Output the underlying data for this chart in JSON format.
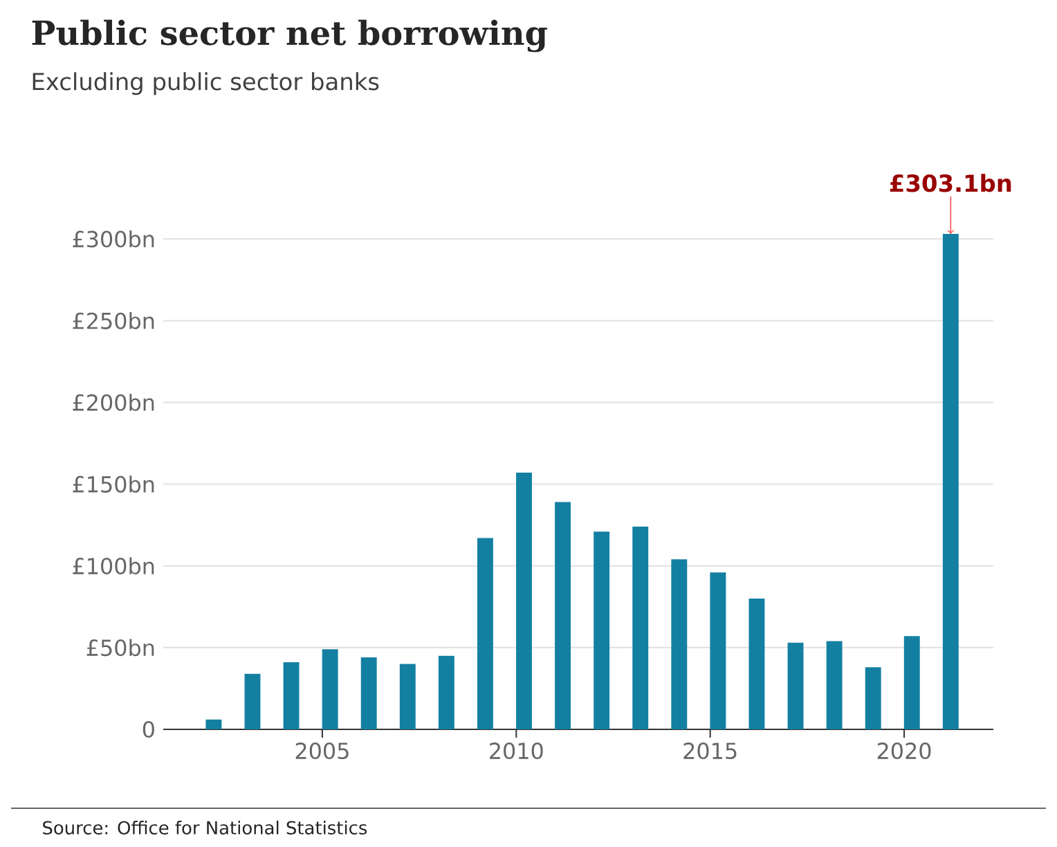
{
  "chart_data": {
    "type": "bar",
    "title": "Public sector net borrowing",
    "subtitle": "Excluding public sector banks",
    "x": [
      2002.2,
      2003.2,
      2004.2,
      2005.2,
      2006.2,
      2007.2,
      2008.2,
      2009.2,
      2010.2,
      2011.2,
      2012.2,
      2013.2,
      2014.2,
      2015.2,
      2016.2,
      2017.2,
      2018.2,
      2019.2,
      2020.2,
      2021.2
    ],
    "values": [
      6,
      34,
      41,
      49,
      44,
      40,
      45,
      117,
      157,
      139,
      121,
      124,
      104,
      96,
      80,
      53,
      54,
      38,
      57,
      303.1
    ],
    "color": "#1380a1",
    "xlim": [
      2000.9,
      2022.3
    ],
    "xticks": [
      2005,
      2010,
      2015,
      2020
    ],
    "ylim": [
      0,
      303.1
    ],
    "yticks": [
      {
        "value": 0,
        "label": "0"
      },
      {
        "value": 50,
        "label": "£50bn"
      },
      {
        "value": 100,
        "label": "£100bn"
      },
      {
        "value": 150,
        "label": "£150bn"
      },
      {
        "value": 200,
        "label": "£200bn"
      },
      {
        "value": 250,
        "label": "£250bn"
      },
      {
        "value": 300,
        "label": "£300bn"
      }
    ],
    "grid": "y",
    "annotations": [
      {
        "text": "£303.1bn",
        "x": 2021.2,
        "y": 303.1
      },
      "Source: Office for National Statistics"
    ]
  }
}
